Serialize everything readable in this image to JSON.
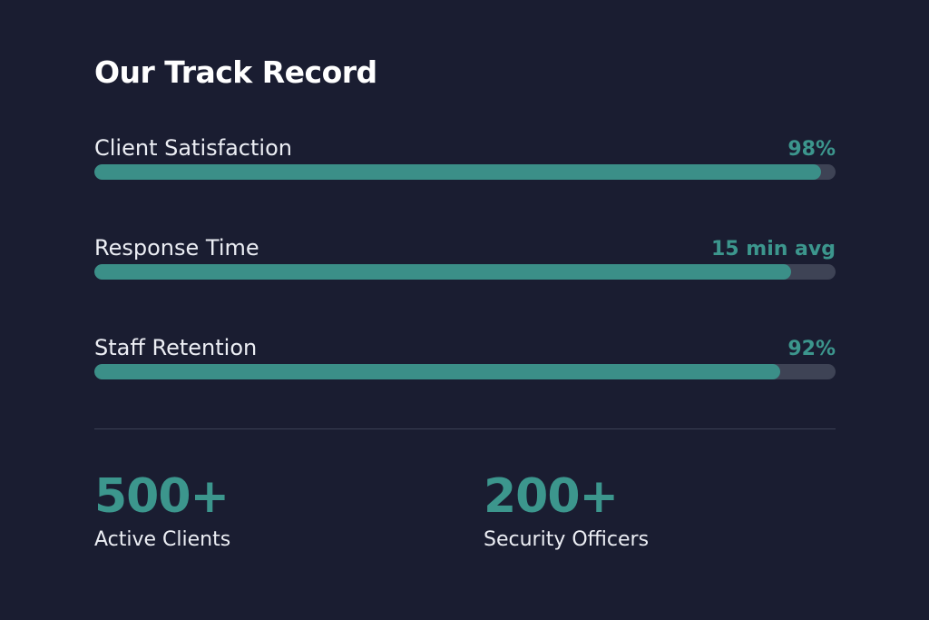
{
  "title": "Our Track Record",
  "metrics": [
    {
      "label": "Client Satisfaction",
      "value": "98%",
      "fill": 0.98
    },
    {
      "label": "Response Time",
      "value": "15 min avg",
      "fill": 0.94
    },
    {
      "label": "Staff Retention",
      "value": "92%",
      "fill": 0.925
    }
  ],
  "stats": [
    {
      "number": "500+",
      "label": "Active Clients"
    },
    {
      "number": "200+",
      "label": "Security Officers"
    }
  ],
  "colors": {
    "background": "#1a1d31",
    "accent": "#3b8f88",
    "track": "#3e4355",
    "text": "#eceef4"
  }
}
